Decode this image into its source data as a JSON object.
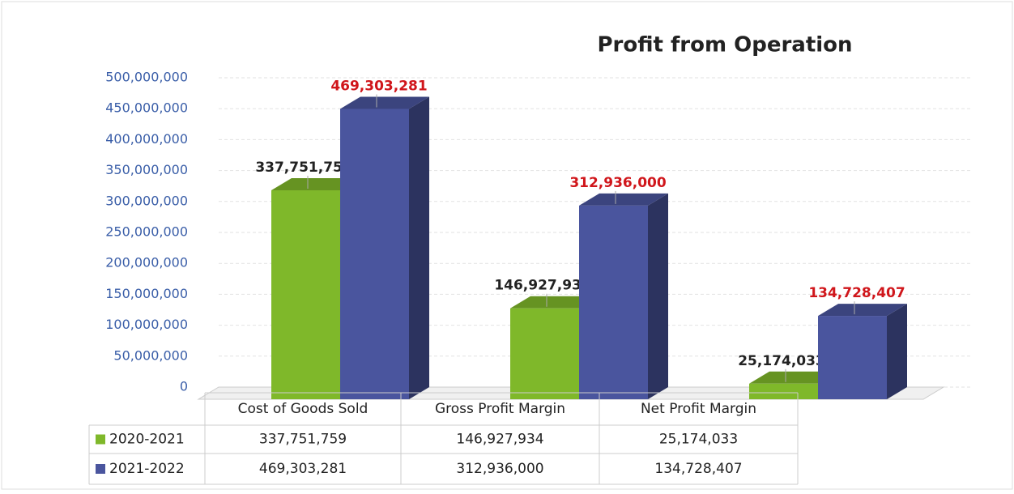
{
  "chart_data": {
    "type": "bar3d",
    "title": "Profit from Operation",
    "categories": [
      "Cost of Goods Sold",
      "Gross Profit Margin",
      "Net Profit Margin"
    ],
    "series": [
      {
        "name": "2020-2021",
        "color": "#7fb82a",
        "label_color": "#222222",
        "values": [
          337751759,
          146927934,
          25174033
        ],
        "value_labels": [
          "337,751,759",
          "146,927,934",
          "25,174,033"
        ]
      },
      {
        "name": "2021-2022",
        "color": "#4a559e",
        "label_color": "#d0161b",
        "values": [
          469303281,
          312936000,
          134728407
        ],
        "value_labels": [
          "469,303,281",
          "312,936,000",
          "134,728,407"
        ]
      }
    ],
    "ylim": [
      0,
      500000000
    ],
    "yticks": [
      {
        "value": 0,
        "label": "0"
      },
      {
        "value": 50000000,
        "label": "50,000,000"
      },
      {
        "value": 100000000,
        "label": "100,000,000"
      },
      {
        "value": 150000000,
        "label": "150,000,000"
      },
      {
        "value": 200000000,
        "label": "200,000,000"
      },
      {
        "value": 250000000,
        "label": "250,000,000"
      },
      {
        "value": 300000000,
        "label": "300,000,000"
      },
      {
        "value": 350000000,
        "label": "350,000,000"
      },
      {
        "value": 400000000,
        "label": "400,000,000"
      },
      {
        "value": 450000000,
        "label": "450,000,000"
      },
      {
        "value": 500000000,
        "label": "500,000,000"
      }
    ],
    "grid": true
  }
}
